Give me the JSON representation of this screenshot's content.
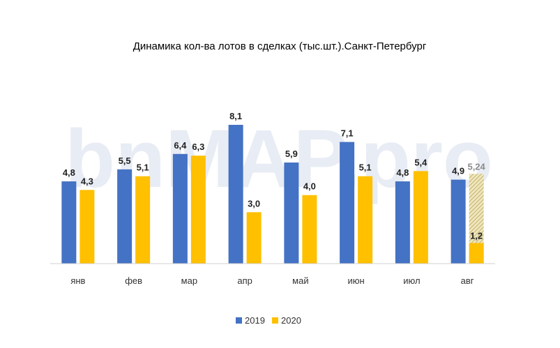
{
  "chart_data": {
    "type": "bar",
    "title": "Динамика кол-ва лотов в сделках (тыс.шт.).Санкт-Петербург",
    "categories": [
      "янв",
      "фев",
      "мар",
      "апр",
      "май",
      "июн",
      "июл",
      "авг"
    ],
    "series": [
      {
        "name": "2019",
        "color": "#4472c4",
        "values": [
          4.8,
          5.5,
          6.4,
          8.1,
          5.9,
          7.1,
          4.8,
          4.9
        ],
        "labels": [
          "4,8",
          "5,5",
          "6,4",
          "8,1",
          "5,9",
          "7,1",
          "4,8",
          "4,9"
        ]
      },
      {
        "name": "2020",
        "color": "#ffc000",
        "values": [
          4.3,
          5.1,
          6.3,
          3.0,
          4.0,
          5.1,
          5.4,
          1.2
        ],
        "labels": [
          "4,3",
          "5,1",
          "6,3",
          "3,0",
          "4,0",
          "5,1",
          "5,4",
          "1,2"
        ]
      }
    ],
    "projection": {
      "category": "авг",
      "series": "2020",
      "value": 5.24,
      "label": "5,24",
      "color": "#c9bf8a"
    },
    "ylim": [
      0,
      8.5
    ],
    "xlabel": "",
    "ylabel": "",
    "legend_position": "bottom"
  },
  "watermark": {
    "text": "bnMAP.pro"
  }
}
